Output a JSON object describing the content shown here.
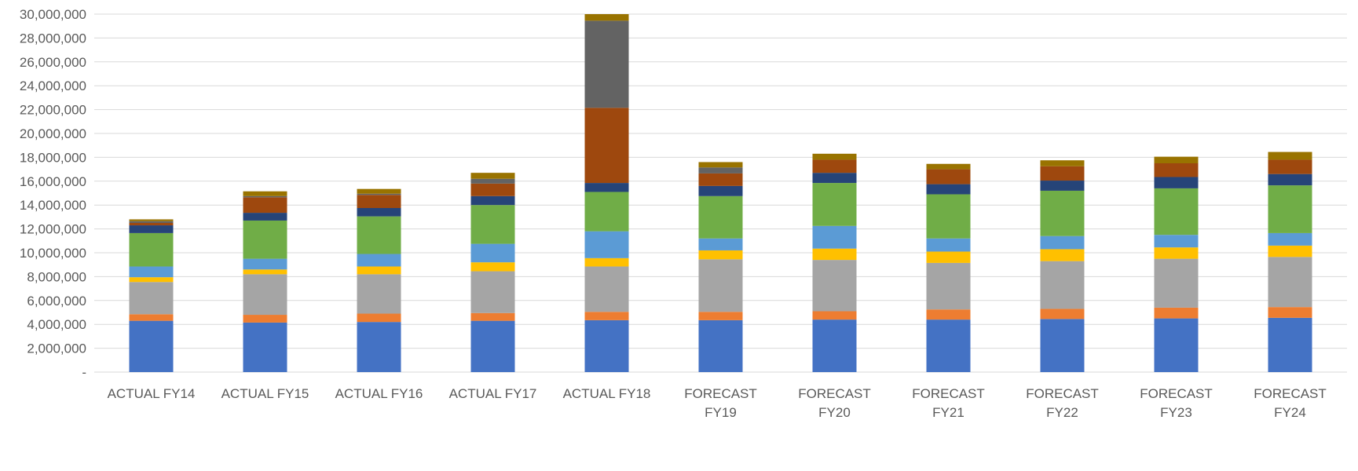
{
  "chart_data": {
    "type": "bar",
    "stacked": true,
    "grid": true,
    "legend": "none",
    "ylim": [
      0,
      30000000
    ],
    "yticks": [
      {
        "value": 0,
        "label": "-"
      },
      {
        "value": 2000000,
        "label": "2,000,000"
      },
      {
        "value": 4000000,
        "label": "4,000,000"
      },
      {
        "value": 6000000,
        "label": "6,000,000"
      },
      {
        "value": 8000000,
        "label": "8,000,000"
      },
      {
        "value": 10000000,
        "label": "10,000,000"
      },
      {
        "value": 12000000,
        "label": "12,000,000"
      },
      {
        "value": 14000000,
        "label": "14,000,000"
      },
      {
        "value": 16000000,
        "label": "16,000,000"
      },
      {
        "value": 18000000,
        "label": "18,000,000"
      },
      {
        "value": 20000000,
        "label": "20,000,000"
      },
      {
        "value": 22000000,
        "label": "22,000,000"
      },
      {
        "value": 24000000,
        "label": "24,000,000"
      },
      {
        "value": 26000000,
        "label": "26,000,000"
      },
      {
        "value": 28000000,
        "label": "28,000,000"
      },
      {
        "value": 30000000,
        "label": "30,000,000"
      }
    ],
    "categories": [
      [
        "ACTUAL FY14"
      ],
      [
        "ACTUAL FY15"
      ],
      [
        "ACTUAL FY16"
      ],
      [
        "ACTUAL FY17"
      ],
      [
        "ACTUAL FY18"
      ],
      [
        "FORECAST",
        "FY19"
      ],
      [
        "FORECAST",
        "FY20"
      ],
      [
        "FORECAST",
        "FY21"
      ],
      [
        "FORECAST",
        "FY22"
      ],
      [
        "FORECAST",
        "FY23"
      ],
      [
        "FORECAST",
        "FY24"
      ]
    ],
    "series": [
      {
        "color": "#4472C4",
        "values": [
          4300000,
          4150000,
          4200000,
          4300000,
          4350000,
          4350000,
          4400000,
          4400000,
          4450000,
          4500000,
          4550000
        ]
      },
      {
        "color": "#ED7D31",
        "values": [
          550000,
          650000,
          700000,
          650000,
          700000,
          700000,
          700000,
          850000,
          850000,
          900000,
          900000
        ]
      },
      {
        "color": "#A5A5A5",
        "values": [
          2700000,
          3400000,
          3300000,
          3500000,
          3800000,
          4400000,
          4300000,
          3900000,
          4000000,
          4100000,
          4200000
        ]
      },
      {
        "color": "#FFC000",
        "values": [
          400000,
          400000,
          650000,
          750000,
          700000,
          750000,
          950000,
          950000,
          1000000,
          950000,
          950000
        ]
      },
      {
        "color": "#5B9BD5",
        "values": [
          900000,
          900000,
          1050000,
          1550000,
          2250000,
          1000000,
          1900000,
          1100000,
          1100000,
          1050000,
          1050000
        ]
      },
      {
        "color": "#70AD47",
        "values": [
          2800000,
          3200000,
          3150000,
          3250000,
          3300000,
          3550000,
          3600000,
          3700000,
          3800000,
          3900000,
          4000000
        ]
      },
      {
        "color": "#264478",
        "values": [
          650000,
          650000,
          700000,
          750000,
          750000,
          850000,
          850000,
          850000,
          850000,
          950000,
          950000
        ]
      },
      {
        "color": "#9E480E",
        "values": [
          200000,
          1300000,
          1100000,
          1050000,
          6300000,
          1050000,
          1100000,
          1250000,
          1200000,
          1150000,
          1200000
        ]
      },
      {
        "color": "#636363",
        "values": [
          150000,
          100000,
          100000,
          400000,
          7300000,
          500000,
          0,
          0,
          0,
          0,
          0
        ]
      },
      {
        "color": "#997300",
        "values": [
          150000,
          400000,
          400000,
          500000,
          550000,
          450000,
          500000,
          450000,
          500000,
          550000,
          650000
        ]
      }
    ]
  }
}
